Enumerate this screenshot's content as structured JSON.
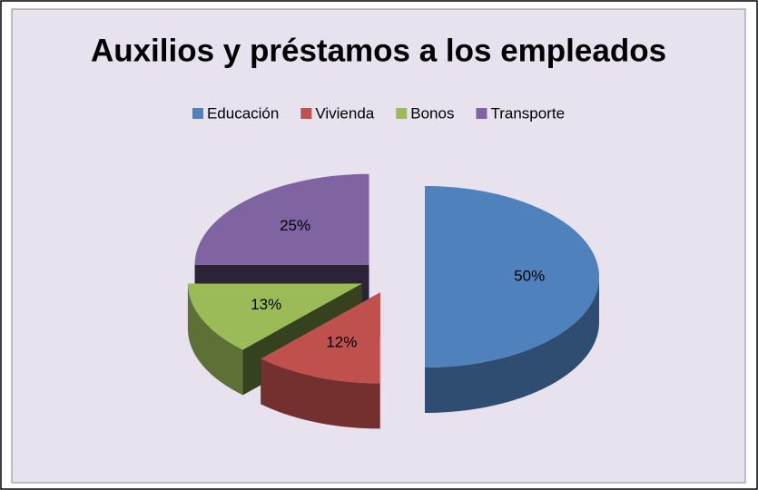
{
  "chart_data": {
    "type": "pie3d",
    "title": "Auxilios y préstamos a los empleados",
    "categories": [
      "Educación",
      "Vivienda",
      "Bonos",
      "Transporte"
    ],
    "values": [
      50,
      12,
      13,
      25
    ],
    "value_labels": [
      "50%",
      "12%",
      "13%",
      "25%"
    ],
    "colors": [
      "#4f81bd",
      "#c0504d",
      "#9bbb59",
      "#8064a2"
    ],
    "legend": "top"
  }
}
